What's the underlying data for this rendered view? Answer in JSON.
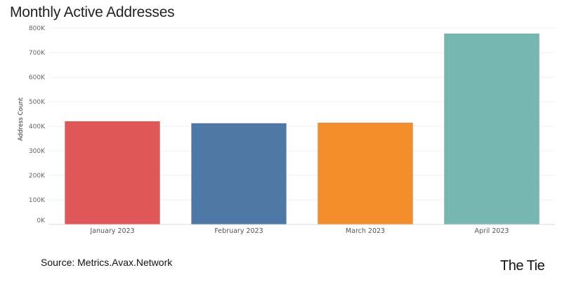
{
  "chart_data": {
    "type": "bar",
    "title": "Monthly Active Addresses",
    "xlabel": "",
    "ylabel": "Address Count",
    "categories": [
      "January 2023",
      "February 2023",
      "March 2023",
      "April 2023"
    ],
    "values": [
      420000,
      412000,
      414000,
      777000
    ],
    "colors": [
      "#e15759",
      "#4e79a7",
      "#f28e2b",
      "#76b7b2"
    ],
    "ylim": [
      0,
      800000
    ],
    "yticks": [
      0,
      100000,
      200000,
      300000,
      400000,
      500000,
      600000,
      700000,
      800000
    ],
    "ytick_labels": [
      "0K",
      "100K",
      "200K",
      "300K",
      "400K",
      "500K",
      "600K",
      "700K",
      "800K"
    ],
    "grid": true
  },
  "source": "Source: Metrics.Avax.Network",
  "brand": "The Tie"
}
